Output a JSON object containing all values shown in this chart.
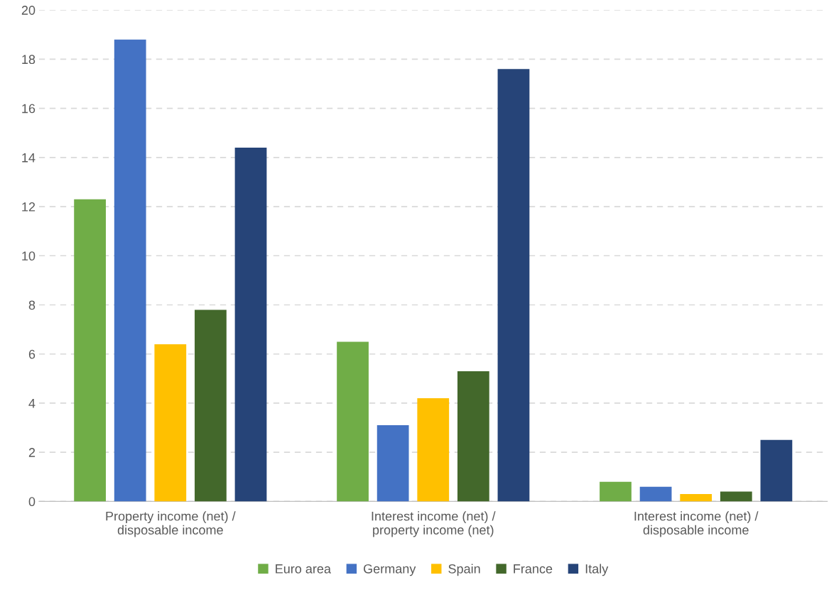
{
  "chart_data": {
    "type": "bar",
    "categories": [
      "Property income (net) /\ndisposable income",
      "Interest income (net) /\nproperty income (net)",
      "Interest income (net) /\ndisposable income"
    ],
    "series": [
      {
        "name": "Euro area",
        "color": "#70ad47",
        "values": [
          12.3,
          6.5,
          0.8
        ]
      },
      {
        "name": "Germany",
        "color": "#4472c4",
        "values": [
          18.8,
          3.1,
          0.6
        ]
      },
      {
        "name": "Spain",
        "color": "#ffc000",
        "values": [
          6.4,
          4.2,
          0.3
        ]
      },
      {
        "name": "France",
        "color": "#43682b",
        "values": [
          7.8,
          5.3,
          0.4
        ]
      },
      {
        "name": "Italy",
        "color": "#264478",
        "values": [
          14.4,
          17.6,
          2.5
        ]
      }
    ],
    "ylim": [
      0,
      20
    ],
    "yticks": [
      0,
      2,
      4,
      6,
      8,
      10,
      12,
      14,
      16,
      18,
      20
    ],
    "grid": "y",
    "legend": "bottom"
  }
}
